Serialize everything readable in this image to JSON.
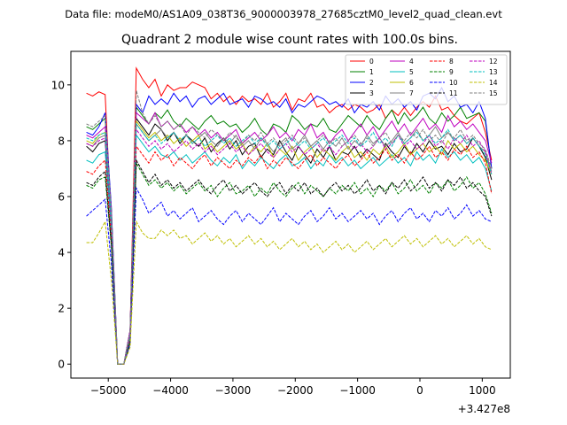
{
  "chart_data": {
    "type": "line",
    "suptitle": "Data file: modeM0/AS1A09_038T36_9000003978_27685cztM0_level2_quad_clean.evt",
    "title": "Quadrant 2 module wise count rates with 100.0s bins.",
    "xlabel": "",
    "ylabel": "",
    "x_offset_label": "+3.427e8",
    "xlim": [
      -5600,
      1450
    ],
    "ylim": [
      -0.5,
      11.2
    ],
    "xticks": [
      -5000,
      -4000,
      -3000,
      -2000,
      -1000,
      0,
      1000
    ],
    "xtick_labels": [
      "−5000",
      "−4000",
      "−3000",
      "−2000",
      "−1000",
      "0",
      "1000"
    ],
    "yticks": [
      0,
      2,
      4,
      6,
      8,
      10
    ],
    "ytick_labels": [
      "0",
      "2",
      "4",
      "6",
      "8",
      "10"
    ],
    "legend_position": "top-right",
    "x": [
      -5350,
      -5250,
      -5150,
      -5050,
      -4950,
      -4850,
      -4750,
      -4650,
      -4550,
      -4450,
      -4350,
      -4250,
      -4150,
      -4050,
      -3950,
      -3850,
      -3750,
      -3650,
      -3550,
      -3450,
      -3350,
      -3250,
      -3150,
      -3050,
      -2950,
      -2850,
      -2750,
      -2650,
      -2550,
      -2450,
      -2350,
      -2250,
      -2150,
      -2050,
      -1950,
      -1850,
      -1750,
      -1650,
      -1550,
      -1450,
      -1350,
      -1250,
      -1150,
      -1050,
      -950,
      -850,
      -750,
      -650,
      -550,
      -450,
      -350,
      -250,
      -150,
      -50,
      50,
      150,
      250,
      350,
      450,
      550,
      650,
      750,
      850,
      950,
      1050,
      1150
    ],
    "series": [
      {
        "name": "0",
        "color": "#ff0000",
        "dash": "solid",
        "values": [
          9.7,
          9.6,
          9.75,
          9.65,
          5.0,
          0.0,
          0.0,
          1.2,
          10.6,
          10.2,
          9.9,
          10.2,
          9.6,
          10.0,
          9.8,
          9.9,
          9.9,
          10.1,
          10.0,
          9.9,
          9.5,
          9.7,
          9.4,
          9.6,
          9.3,
          9.6,
          9.4,
          9.5,
          9.3,
          9.7,
          9.2,
          9.4,
          9.7,
          9.1,
          9.5,
          9.4,
          9.7,
          9.2,
          9.3,
          9.0,
          9.2,
          9.3,
          9.1,
          9.3,
          9.2,
          9.0,
          9.1,
          9.3,
          8.8,
          9.1,
          8.9,
          9.2,
          8.9,
          9.2,
          9.4,
          9.2,
          9.6,
          9.1,
          9.2,
          8.9,
          8.7,
          8.6,
          8.8,
          9.0,
          8.3,
          7.3
        ]
      },
      {
        "name": "1",
        "color": "#008000",
        "dash": "solid",
        "values": [
          8.5,
          8.4,
          8.6,
          8.8,
          5.5,
          0.0,
          0.0,
          1.2,
          9.2,
          8.9,
          8.6,
          9.0,
          8.8,
          9.1,
          8.7,
          8.5,
          8.8,
          8.6,
          8.4,
          8.7,
          8.9,
          8.6,
          8.7,
          8.5,
          8.6,
          8.3,
          8.5,
          8.8,
          8.4,
          8.2,
          8.6,
          8.5,
          8.3,
          8.9,
          8.7,
          8.4,
          8.6,
          8.5,
          8.8,
          8.4,
          8.3,
          8.6,
          8.9,
          8.7,
          8.5,
          8.9,
          8.6,
          8.4,
          8.8,
          9.1,
          8.6,
          9.0,
          8.7,
          8.9,
          9.2,
          8.8,
          8.6,
          9.0,
          8.7,
          8.9,
          9.2,
          8.8,
          8.9,
          9.0,
          8.7,
          7.0
        ]
      },
      {
        "name": "2",
        "color": "#0000ff",
        "dash": "solid",
        "values": [
          8.3,
          8.2,
          8.5,
          9.0,
          5.6,
          0.0,
          0.0,
          1.2,
          9.3,
          9.0,
          9.6,
          9.3,
          9.5,
          9.3,
          9.7,
          9.4,
          9.6,
          9.2,
          9.5,
          9.6,
          9.3,
          9.5,
          9.7,
          9.3,
          9.4,
          9.5,
          9.2,
          9.6,
          9.5,
          9.3,
          9.4,
          9.2,
          9.5,
          9.0,
          9.3,
          9.2,
          9.4,
          9.6,
          9.5,
          9.3,
          9.4,
          9.2,
          9.5,
          9.0,
          9.3,
          9.2,
          9.4,
          9.1,
          9.6,
          9.3,
          9.5,
          9.2,
          9.4,
          9.1,
          9.6,
          9.7,
          9.5,
          9.9,
          9.4,
          9.6,
          9.2,
          9.3,
          9.0,
          9.4,
          8.8,
          7.0
        ]
      },
      {
        "name": "3",
        "color": "#000000",
        "dash": "solid",
        "values": [
          7.8,
          7.6,
          7.9,
          8.0,
          5.0,
          0.0,
          0.0,
          1.1,
          8.8,
          8.5,
          8.2,
          8.6,
          8.4,
          8.0,
          8.3,
          7.9,
          8.2,
          8.0,
          7.8,
          8.1,
          7.6,
          7.9,
          8.1,
          7.7,
          8.0,
          7.5,
          7.8,
          7.9,
          7.4,
          7.7,
          7.5,
          8.0,
          7.6,
          7.3,
          7.8,
          7.5,
          7.2,
          7.7,
          7.4,
          7.8,
          7.3,
          7.6,
          7.5,
          7.8,
          7.4,
          7.7,
          7.5,
          7.3,
          7.9,
          7.6,
          7.4,
          7.8,
          7.5,
          7.9,
          7.6,
          8.0,
          7.7,
          7.8,
          7.5,
          7.9,
          7.6,
          7.7,
          8.1,
          7.8,
          7.4,
          6.6
        ]
      },
      {
        "name": "4",
        "color": "#bf00bf",
        "dash": "solid",
        "values": [
          8.2,
          8.1,
          8.3,
          8.5,
          5.4,
          0.0,
          0.0,
          1.2,
          9.0,
          8.8,
          8.6,
          9.0,
          8.5,
          8.7,
          8.4,
          8.6,
          8.3,
          8.5,
          8.2,
          8.4,
          8.1,
          8.3,
          8.0,
          8.2,
          8.4,
          7.9,
          8.1,
          8.3,
          8.0,
          8.2,
          8.5,
          8.1,
          8.3,
          8.0,
          8.4,
          8.2,
          8.6,
          8.1,
          8.3,
          7.9,
          8.2,
          8.4,
          8.0,
          8.3,
          8.6,
          8.2,
          8.5,
          8.1,
          8.4,
          8.7,
          8.3,
          8.6,
          8.2,
          8.5,
          8.8,
          8.4,
          8.6,
          8.3,
          8.9,
          8.5,
          8.7,
          8.4,
          8.6,
          8.3,
          8.0,
          7.2
        ]
      },
      {
        "name": "5",
        "color": "#00bfbf",
        "dash": "solid",
        "values": [
          7.3,
          7.2,
          7.5,
          7.6,
          4.8,
          0.0,
          0.0,
          1.0,
          8.2,
          7.9,
          7.6,
          7.8,
          7.5,
          7.4,
          7.6,
          7.3,
          7.5,
          7.2,
          7.4,
          7.6,
          7.3,
          7.1,
          7.4,
          7.2,
          7.5,
          7.0,
          7.3,
          7.1,
          7.4,
          7.2,
          7.0,
          7.3,
          7.5,
          7.1,
          7.2,
          7.4,
          7.0,
          7.3,
          7.1,
          7.5,
          7.2,
          7.4,
          7.1,
          7.3,
          7.0,
          7.2,
          7.4,
          7.1,
          7.3,
          7.5,
          7.2,
          7.4,
          7.1,
          7.6,
          7.3,
          7.5,
          7.2,
          7.7,
          7.4,
          7.6,
          7.3,
          7.5,
          7.2,
          7.4,
          7.0,
          6.2
        ]
      },
      {
        "name": "6",
        "color": "#bfbf00",
        "dash": "solid",
        "values": [
          8.0,
          7.9,
          8.2,
          8.3,
          5.2,
          0.0,
          0.0,
          1.1,
          8.7,
          8.4,
          8.1,
          8.3,
          8.0,
          8.2,
          7.9,
          8.1,
          7.8,
          8.0,
          8.2,
          7.7,
          7.9,
          7.6,
          7.8,
          8.0,
          7.7,
          7.9,
          7.5,
          7.8,
          7.6,
          7.9,
          7.4,
          7.7,
          7.5,
          7.8,
          7.3,
          7.6,
          7.8,
          7.4,
          7.7,
          7.5,
          7.3,
          7.6,
          7.8,
          7.4,
          7.6,
          7.3,
          7.7,
          7.5,
          7.8,
          7.4,
          7.6,
          7.9,
          7.5,
          7.7,
          7.9,
          7.6,
          7.8,
          7.5,
          8.0,
          7.7,
          7.9,
          7.6,
          7.8,
          7.5,
          7.3,
          6.8
        ]
      },
      {
        "name": "7",
        "color": "#808080",
        "dash": "solid",
        "values": [
          7.9,
          7.8,
          8.1,
          8.2,
          5.1,
          0.0,
          0.0,
          1.1,
          8.6,
          8.3,
          8.0,
          8.2,
          8.4,
          8.1,
          8.3,
          8.0,
          8.2,
          7.9,
          8.1,
          8.3,
          8.0,
          7.8,
          8.1,
          7.9,
          8.2,
          7.8,
          8.0,
          7.7,
          8.1,
          7.9,
          7.6,
          7.9,
          8.1,
          7.7,
          7.9,
          8.2,
          7.8,
          8.0,
          7.7,
          8.0,
          7.8,
          8.1,
          7.7,
          8.0,
          7.8,
          8.2,
          7.9,
          8.1,
          7.8,
          8.0,
          8.3,
          7.9,
          8.1,
          8.4,
          8.0,
          8.2,
          8.5,
          8.1,
          8.3,
          8.0,
          8.2,
          7.9,
          8.1,
          7.8,
          7.6,
          6.9
        ]
      },
      {
        "name": "8",
        "color": "#ff0000",
        "dash": "dashed",
        "values": [
          6.9,
          6.8,
          7.1,
          7.3,
          4.5,
          0.0,
          0.0,
          0.9,
          7.8,
          7.5,
          7.2,
          7.6,
          7.3,
          7.5,
          7.1,
          7.4,
          7.2,
          7.0,
          7.3,
          7.5,
          7.1,
          7.4,
          7.2,
          7.0,
          7.3,
          7.1,
          7.4,
          7.2,
          7.5,
          7.0,
          7.3,
          7.1,
          7.4,
          7.2,
          7.0,
          7.3,
          7.5,
          7.1,
          7.4,
          7.2,
          7.0,
          7.3,
          7.5,
          7.1,
          7.3,
          7.6,
          7.2,
          7.4,
          7.7,
          7.3,
          7.5,
          7.2,
          7.6,
          7.3,
          7.5,
          7.8,
          7.4,
          7.6,
          7.3,
          7.7,
          7.5,
          7.8,
          7.4,
          7.6,
          7.2,
          6.1
        ]
      },
      {
        "name": "9",
        "color": "#008000",
        "dash": "dashed",
        "values": [
          6.4,
          6.3,
          6.6,
          6.7,
          4.2,
          0.0,
          0.0,
          0.8,
          7.2,
          6.8,
          6.4,
          6.6,
          6.3,
          6.5,
          6.2,
          6.4,
          6.1,
          6.3,
          6.5,
          6.2,
          6.4,
          6.0,
          6.3,
          6.5,
          6.1,
          6.2,
          6.4,
          6.0,
          6.3,
          6.1,
          6.5,
          6.2,
          6.0,
          6.3,
          6.5,
          6.1,
          6.4,
          6.2,
          6.0,
          6.3,
          6.1,
          6.4,
          6.2,
          6.5,
          6.1,
          6.3,
          6.0,
          6.4,
          6.2,
          6.5,
          6.1,
          6.3,
          6.6,
          6.2,
          6.4,
          6.1,
          6.5,
          6.3,
          6.6,
          6.2,
          6.4,
          6.7,
          6.3,
          6.5,
          6.1,
          5.4
        ]
      },
      {
        "name": "10",
        "color": "#0000ff",
        "dash": "dashed",
        "values": [
          5.3,
          5.5,
          5.7,
          5.9,
          3.6,
          0.0,
          0.0,
          0.7,
          6.3,
          5.9,
          5.4,
          5.6,
          5.8,
          5.3,
          5.5,
          5.2,
          5.4,
          5.6,
          5.1,
          5.3,
          5.5,
          5.2,
          5.0,
          5.3,
          5.5,
          5.1,
          5.4,
          5.2,
          5.0,
          5.3,
          5.6,
          5.1,
          5.4,
          5.2,
          5.0,
          5.3,
          5.5,
          5.1,
          5.3,
          5.6,
          5.2,
          5.4,
          5.1,
          5.3,
          5.5,
          5.2,
          5.4,
          5.0,
          5.3,
          5.5,
          5.1,
          5.4,
          5.6,
          5.2,
          5.4,
          5.1,
          5.5,
          5.3,
          5.6,
          5.2,
          5.4,
          5.7,
          5.3,
          5.5,
          5.2,
          5.1
        ]
      },
      {
        "name": "11",
        "color": "#000000",
        "dash": "dashed",
        "values": [
          6.5,
          6.4,
          6.7,
          6.9,
          4.3,
          0.0,
          0.0,
          0.8,
          7.3,
          6.9,
          6.5,
          6.8,
          6.4,
          6.6,
          6.3,
          6.5,
          6.2,
          6.4,
          6.6,
          6.3,
          6.1,
          6.4,
          6.6,
          6.2,
          6.4,
          6.1,
          6.3,
          6.5,
          6.2,
          6.0,
          6.3,
          6.5,
          6.1,
          6.4,
          6.2,
          6.5,
          6.1,
          6.3,
          6.0,
          6.3,
          6.5,
          6.2,
          6.4,
          6.1,
          6.3,
          6.6,
          6.2,
          6.4,
          6.1,
          6.5,
          6.3,
          6.6,
          6.2,
          6.4,
          6.7,
          6.3,
          6.5,
          6.2,
          6.6,
          6.4,
          6.7,
          6.3,
          6.5,
          6.2,
          6.0,
          5.3
        ]
      },
      {
        "name": "12",
        "color": "#bf00bf",
        "dash": "dashed",
        "values": [
          7.9,
          7.8,
          8.0,
          8.1,
          5.0,
          0.0,
          0.0,
          1.0,
          8.4,
          8.1,
          7.8,
          8.0,
          7.7,
          7.9,
          7.6,
          7.8,
          8.0,
          7.7,
          7.9,
          7.6,
          7.8,
          7.5,
          7.7,
          7.9,
          7.6,
          7.8,
          7.5,
          7.7,
          7.9,
          7.6,
          7.4,
          7.7,
          7.9,
          7.6,
          7.8,
          7.5,
          7.7,
          7.9,
          7.6,
          7.8,
          7.5,
          7.8,
          8.0,
          7.7,
          7.9,
          7.6,
          7.8,
          8.1,
          7.7,
          7.9,
          8.2,
          7.8,
          8.0,
          7.7,
          7.9,
          8.2,
          7.8,
          8.0,
          7.7,
          8.1,
          7.9,
          8.2,
          7.8,
          8.0,
          7.6,
          6.8
        ]
      },
      {
        "name": "13",
        "color": "#00bfbf",
        "dash": "dashed",
        "values": [
          8.1,
          8.0,
          8.2,
          8.3,
          5.1,
          0.0,
          0.0,
          1.0,
          8.6,
          8.3,
          8.0,
          8.2,
          7.9,
          8.1,
          8.3,
          8.0,
          8.2,
          7.9,
          8.1,
          7.8,
          8.0,
          8.2,
          7.9,
          8.1,
          7.8,
          8.0,
          8.2,
          7.9,
          8.1,
          7.8,
          8.0,
          7.7,
          7.9,
          8.1,
          7.8,
          8.0,
          7.7,
          7.9,
          8.1,
          7.8,
          8.0,
          8.2,
          7.9,
          8.1,
          7.8,
          8.0,
          8.3,
          7.9,
          8.1,
          7.8,
          8.2,
          7.9,
          8.1,
          8.3,
          8.0,
          8.2,
          7.9,
          8.1,
          8.4,
          8.0,
          8.2,
          7.9,
          8.1,
          7.8,
          7.5,
          6.8
        ]
      },
      {
        "name": "14",
        "color": "#bfbf00",
        "dash": "dashed",
        "values": [
          4.35,
          4.35,
          4.7,
          5.1,
          3.0,
          0.0,
          0.0,
          0.6,
          5.1,
          4.7,
          4.5,
          4.5,
          4.8,
          4.6,
          4.8,
          4.5,
          4.6,
          4.3,
          4.5,
          4.7,
          4.4,
          4.6,
          4.3,
          4.5,
          4.2,
          4.4,
          4.6,
          4.3,
          4.5,
          4.2,
          4.4,
          4.1,
          4.3,
          4.5,
          4.2,
          4.4,
          4.1,
          4.3,
          4.0,
          4.2,
          4.4,
          4.1,
          4.3,
          4.0,
          4.2,
          4.4,
          4.1,
          4.3,
          4.5,
          4.2,
          4.4,
          4.6,
          4.3,
          4.5,
          4.2,
          4.4,
          4.6,
          4.3,
          4.5,
          4.2,
          4.4,
          4.6,
          4.3,
          4.5,
          4.2,
          4.1
        ]
      },
      {
        "name": "15",
        "color": "#808080",
        "dash": "dashed",
        "values": [
          8.6,
          8.5,
          8.7,
          8.9,
          5.5,
          0.0,
          0.0,
          1.1,
          9.8,
          9.0,
          8.6,
          8.9,
          8.5,
          8.7,
          8.4,
          8.6,
          8.2,
          8.5,
          8.3,
          8.1,
          8.4,
          8.2,
          8.0,
          8.3,
          8.1,
          7.9,
          8.2,
          8.0,
          8.3,
          7.9,
          8.1,
          7.8,
          8.0,
          8.2,
          7.9,
          8.1,
          7.8,
          8.0,
          8.2,
          7.9,
          8.1,
          7.8,
          8.0,
          8.2,
          7.9,
          8.1,
          7.8,
          8.1,
          8.3,
          7.9,
          8.2,
          8.0,
          8.3,
          8.1,
          8.4,
          8.0,
          8.2,
          7.9,
          8.3,
          8.1,
          8.4,
          8.0,
          8.2,
          7.9,
          7.7,
          7.0
        ]
      }
    ]
  }
}
